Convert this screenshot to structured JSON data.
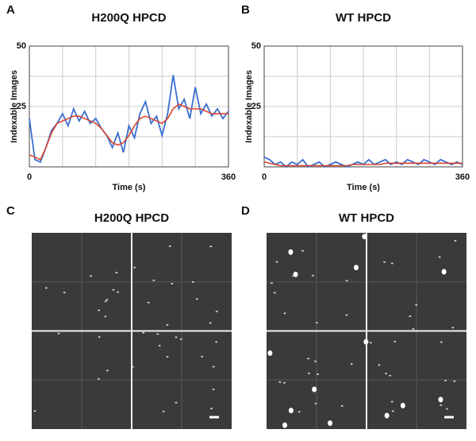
{
  "chart_data": [
    {
      "type": "line",
      "panel_label": "A",
      "title": "H200Q HPCD",
      "x_label": "Time (s)",
      "y_label": "Indexable Images",
      "xlim": [
        0,
        360
      ],
      "ylim": [
        0,
        50
      ],
      "xticks": [
        0,
        360
      ],
      "yticks": [
        25,
        50
      ],
      "minor_xticks": [
        60,
        120,
        180,
        240,
        300
      ],
      "minor_yticks": [
        12.5,
        37.5
      ],
      "grid": true,
      "x": [
        0,
        10,
        20,
        30,
        40,
        50,
        60,
        70,
        80,
        90,
        100,
        110,
        120,
        130,
        140,
        150,
        160,
        170,
        180,
        190,
        200,
        210,
        220,
        230,
        240,
        250,
        260,
        270,
        280,
        290,
        300,
        310,
        320,
        330,
        340,
        350,
        360
      ],
      "series": [
        {
          "color": "#3a6fd0",
          "values": [
            20,
            3,
            2,
            8,
            15,
            18,
            22,
            17,
            24,
            19,
            23,
            18,
            20,
            16,
            13,
            8,
            14,
            6,
            17,
            12,
            22,
            27,
            18,
            21,
            13,
            22,
            38,
            24,
            28,
            20,
            33,
            22,
            26,
            21,
            24,
            20,
            23
          ]
        },
        {
          "color": "#d9452b",
          "values": [
            5,
            4,
            3,
            8,
            14,
            18,
            19,
            20,
            21,
            21,
            20,
            19,
            18,
            16,
            13,
            10,
            9,
            10,
            13,
            17,
            20,
            21,
            20,
            19,
            18,
            20,
            24,
            26,
            25,
            24,
            24,
            24,
            23,
            22,
            22,
            22,
            22
          ]
        }
      ]
    },
    {
      "type": "line",
      "panel_label": "B",
      "title": "WT HPCD",
      "x_label": "Time (s)",
      "y_label": "Indexable Images",
      "xlim": [
        0,
        360
      ],
      "ylim": [
        0,
        50
      ],
      "xticks": [
        0,
        360
      ],
      "yticks": [
        25,
        50
      ],
      "minor_xticks": [
        60,
        120,
        180,
        240,
        300
      ],
      "minor_yticks": [
        12.5,
        37.5
      ],
      "grid": true,
      "x": [
        0,
        10,
        20,
        30,
        40,
        50,
        60,
        70,
        80,
        90,
        100,
        110,
        120,
        130,
        140,
        150,
        160,
        170,
        180,
        190,
        200,
        210,
        220,
        230,
        240,
        250,
        260,
        270,
        280,
        290,
        300,
        310,
        320,
        330,
        340,
        350,
        360
      ],
      "series": [
        {
          "color": "#3a6fd0",
          "values": [
            4,
            3,
            1,
            2,
            0,
            2,
            1,
            3,
            0,
            1,
            2,
            0,
            1,
            2,
            1,
            0,
            1,
            2,
            1,
            3,
            1,
            2,
            3,
            1,
            2,
            1,
            3,
            2,
            1,
            3,
            2,
            1,
            3,
            2,
            1,
            2,
            1
          ]
        },
        {
          "color": "#d9452b",
          "values": [
            2,
            1.5,
            1,
            0.5,
            0.5,
            0.5,
            0.5,
            0.5,
            0.5,
            0.5,
            0.5,
            0.5,
            0.5,
            0.5,
            0.5,
            0.5,
            1,
            1,
            1,
            1,
            1,
            1,
            1.5,
            1.5,
            1.5,
            1.5,
            1.5,
            1.5,
            1.5,
            1.5,
            1.5,
            1.5,
            1.5,
            1.5,
            1.5,
            1.5,
            1.5
          ]
        }
      ]
    }
  ],
  "images": [
    {
      "panel_label": "C",
      "title": "H200Q HPCD"
    },
    {
      "panel_label": "D",
      "title": "WT HPCD"
    }
  ]
}
